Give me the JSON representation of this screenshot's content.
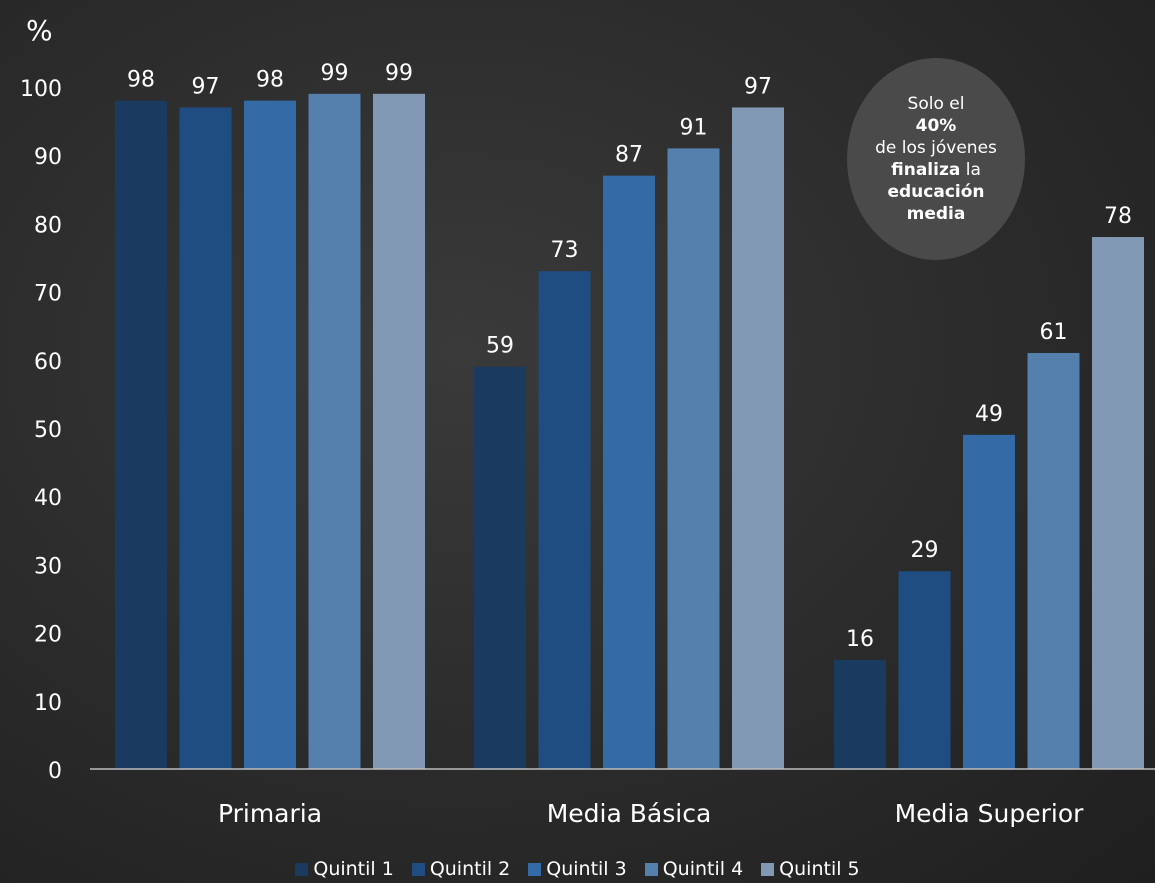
{
  "chart_data": {
    "type": "bar",
    "ylabel": "%",
    "ylim": [
      0,
      100
    ],
    "yticks": [
      0,
      10,
      20,
      30,
      40,
      50,
      60,
      70,
      80,
      90,
      100
    ],
    "categories": [
      "Primaria",
      "Media Básica",
      "Media Superior"
    ],
    "series": [
      {
        "name": "Quintil 1",
        "values": [
          98,
          59,
          16
        ],
        "color": "#1b3a5f"
      },
      {
        "name": "Quintil 2",
        "values": [
          97,
          73,
          29
        ],
        "color": "#1f4c81"
      },
      {
        "name": "Quintil 3",
        "values": [
          98,
          87,
          49
        ],
        "color": "#346aa5"
      },
      {
        "name": "Quintil 4",
        "values": [
          99,
          91,
          61
        ],
        "color": "#5580ae"
      },
      {
        "name": "Quintil 5",
        "values": [
          99,
          97,
          78
        ],
        "color": "#8299b5"
      }
    ],
    "annotation": {
      "line1": "Solo el",
      "line2": "40%",
      "line3": "de los jóvenes",
      "line4_bold": "finaliza",
      "line4_rest": " la",
      "line5": "educación",
      "line6": "media"
    }
  }
}
